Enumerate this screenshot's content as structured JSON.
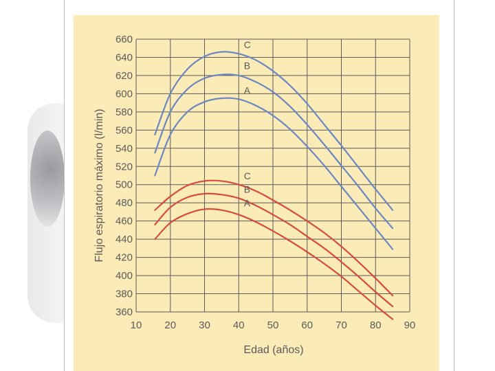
{
  "colors": {
    "panel": "#fbebb7",
    "grid": "#5a5a5a",
    "blue_series": "#6b86c1",
    "red_series": "#d64a3c",
    "text": "#5a5a5a"
  },
  "chart_data": {
    "type": "line",
    "xlabel": "Edad (años)",
    "ylabel": "Flujo espiratorio máximo (l/min)",
    "xlim": [
      10,
      90
    ],
    "ylim": [
      360,
      660
    ],
    "x_ticks": [
      "10",
      "20",
      "30",
      "40",
      "50",
      "60",
      "70",
      "80",
      "90"
    ],
    "y_ticks": [
      "360",
      "380",
      "400",
      "420",
      "440",
      "460",
      "480",
      "500",
      "520",
      "540",
      "560",
      "580",
      "600",
      "620",
      "640",
      "660"
    ],
    "grid": true,
    "series": [
      {
        "name": "C",
        "group": "upper",
        "color": "#6b86c1",
        "x": [
          15.5,
          20,
          25,
          30,
          35,
          40,
          45,
          50,
          55,
          60,
          65,
          70,
          75,
          80,
          85
        ],
        "values": [
          555,
          600,
          627,
          641,
          646,
          644,
          637,
          625,
          609,
          589,
          566,
          543,
          519,
          495,
          472
        ]
      },
      {
        "name": "B",
        "group": "upper",
        "color": "#6b86c1",
        "x": [
          15.5,
          20,
          25,
          30,
          35,
          40,
          45,
          50,
          55,
          60,
          65,
          70,
          75,
          80,
          85
        ],
        "values": [
          535,
          580,
          605,
          617,
          621,
          620,
          613,
          602,
          586,
          566,
          544,
          521,
          498,
          474,
          452
        ]
      },
      {
        "name": "A",
        "group": "upper",
        "color": "#6b86c1",
        "x": [
          15.5,
          20,
          25,
          30,
          35,
          40,
          45,
          50,
          55,
          60,
          65,
          70,
          75,
          80,
          85
        ],
        "values": [
          510,
          555,
          580,
          591,
          595,
          594,
          587,
          576,
          561,
          542,
          521,
          498,
          475,
          452,
          429
        ]
      },
      {
        "name": "C",
        "group": "lower",
        "color": "#d64a3c",
        "x": [
          15.5,
          20,
          25,
          30,
          35,
          40,
          45,
          50,
          55,
          60,
          65,
          70,
          75,
          80,
          85
        ],
        "values": [
          472,
          487,
          499,
          504,
          504,
          500,
          493,
          483,
          472,
          460,
          447,
          432,
          415,
          397,
          378
        ]
      },
      {
        "name": "B",
        "group": "lower",
        "color": "#d64a3c",
        "x": [
          15.5,
          20,
          25,
          30,
          35,
          40,
          45,
          50,
          55,
          60,
          65,
          70,
          75,
          80,
          85
        ],
        "values": [
          456,
          475,
          486,
          490,
          489,
          485,
          477,
          467,
          456,
          443,
          430,
          415,
          399,
          382,
          366
        ]
      },
      {
        "name": "A",
        "group": "lower",
        "color": "#d64a3c",
        "x": [
          15.5,
          20,
          25,
          30,
          35,
          40,
          45,
          50,
          55,
          60,
          65,
          70,
          75,
          80,
          85
        ],
        "values": [
          440,
          458,
          468,
          473,
          472,
          467,
          459,
          449,
          438,
          426,
          413,
          399,
          383,
          367,
          352
        ]
      }
    ],
    "curve_labels": [
      {
        "text": "C",
        "x": 41.5,
        "y": 650
      },
      {
        "text": "B",
        "x": 41.5,
        "y": 627
      },
      {
        "text": "A",
        "x": 41.5,
        "y": 600
      },
      {
        "text": "C",
        "x": 41.5,
        "y": 506
      },
      {
        "text": "B",
        "x": 41.5,
        "y": 491
      },
      {
        "text": "A",
        "x": 41.5,
        "y": 476
      }
    ]
  }
}
